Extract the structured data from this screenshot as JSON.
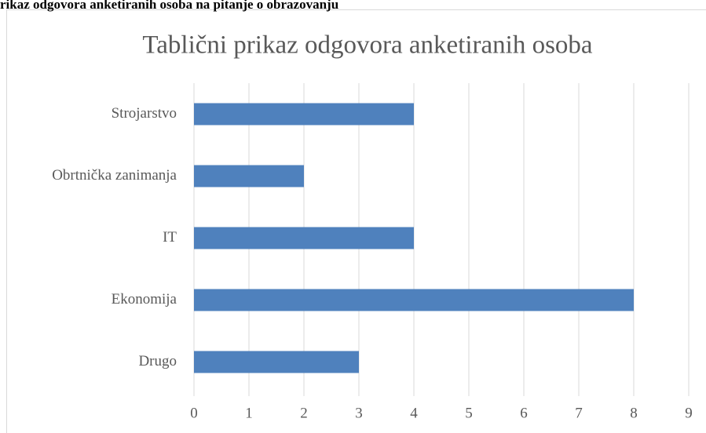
{
  "caption": "rikaz odgovora anketiranih osoba na pitanje o obrazovanju",
  "chart_data": {
    "type": "hbar",
    "title": "Tablični prikaz odgovora anketiranih osoba",
    "categories": [
      "Strojarstvo",
      "Obrtnička zanimanja",
      "IT",
      "Ekonomija",
      "Drugo"
    ],
    "values": [
      4,
      2,
      4,
      8,
      3
    ],
    "color": "#4f81bd",
    "xlim": [
      0,
      9
    ],
    "xticks": [
      0,
      1,
      2,
      3,
      4,
      5,
      6,
      7,
      8,
      9
    ],
    "grid": true
  }
}
